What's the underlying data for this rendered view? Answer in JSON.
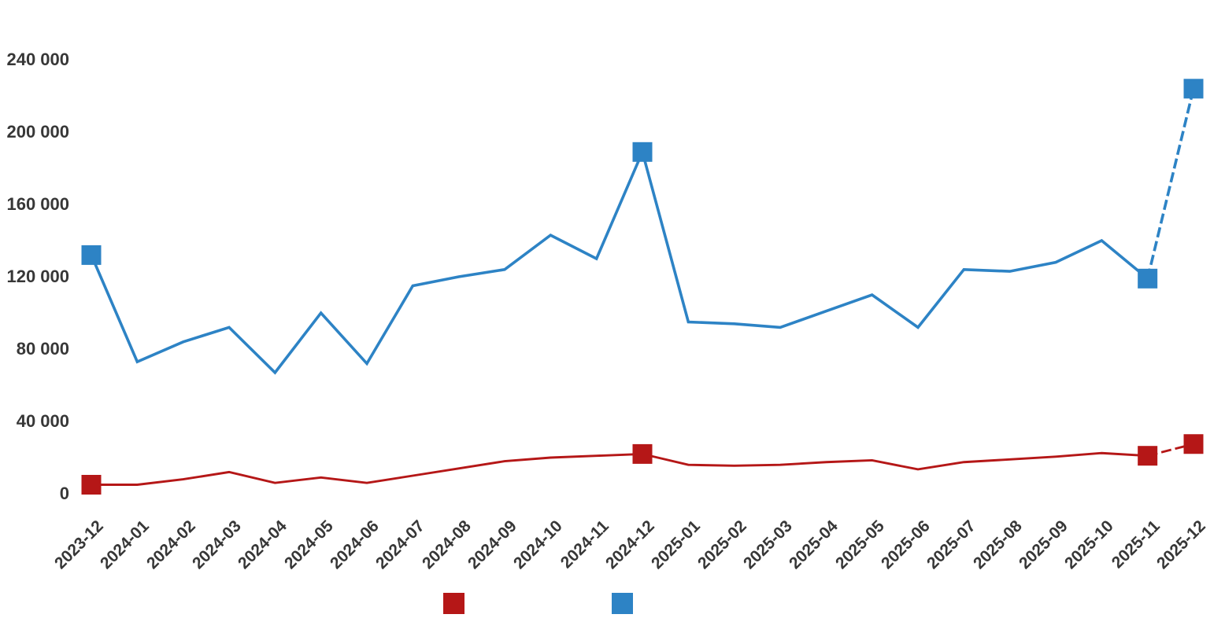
{
  "chart_data": {
    "type": "line",
    "title": "",
    "xlabel": "",
    "ylabel": "",
    "grid": false,
    "legend_position": "bottom",
    "ylim": [
      0,
      240000
    ],
    "y_ticks": [
      {
        "value": 0,
        "label": "0"
      },
      {
        "value": 40000,
        "label": "40 000"
      },
      {
        "value": 80000,
        "label": "80 000"
      },
      {
        "value": 120000,
        "label": "120 000"
      },
      {
        "value": 160000,
        "label": "160 000"
      },
      {
        "value": 200000,
        "label": "200 000"
      },
      {
        "value": 240000,
        "label": "240 000"
      }
    ],
    "categories": [
      "2023-12",
      "2024-01",
      "2024-02",
      "2024-03",
      "2024-04",
      "2024-05",
      "2024-06",
      "2024-07",
      "2024-08",
      "2024-09",
      "2024-10",
      "2024-11",
      "2024-12",
      "2025-01",
      "2025-02",
      "2025-03",
      "2025-04",
      "2025-05",
      "2025-06",
      "2025-07",
      "2025-08",
      "2025-09",
      "2025-10",
      "2025-11",
      "2025-12"
    ],
    "series": [
      {
        "name": "",
        "color": "#b51717",
        "values": [
          5000,
          5000,
          8000,
          12000,
          6000,
          9000,
          6000,
          10000,
          14000,
          18000,
          20000,
          21000,
          22000,
          16000,
          15500,
          16000,
          17500,
          18500,
          13500,
          17500,
          19000,
          20500,
          22500,
          21000,
          27500
        ],
        "marker_indices": [
          0,
          12,
          23,
          24
        ],
        "last_segment_dashed": true
      },
      {
        "name": "",
        "color": "#2d83c5",
        "values": [
          132000,
          73000,
          84000,
          92000,
          67000,
          100000,
          72000,
          115000,
          120000,
          124000,
          143000,
          130000,
          189000,
          95000,
          94000,
          92000,
          101000,
          110000,
          92000,
          124000,
          123000,
          128000,
          140000,
          119000,
          224000
        ],
        "marker_indices": [
          0,
          12,
          23,
          24
        ],
        "last_segment_dashed": true
      }
    ],
    "legend": {
      "items": [
        {
          "color": "#b51717",
          "label": ""
        },
        {
          "color": "#2d83c5",
          "label": ""
        }
      ]
    }
  }
}
